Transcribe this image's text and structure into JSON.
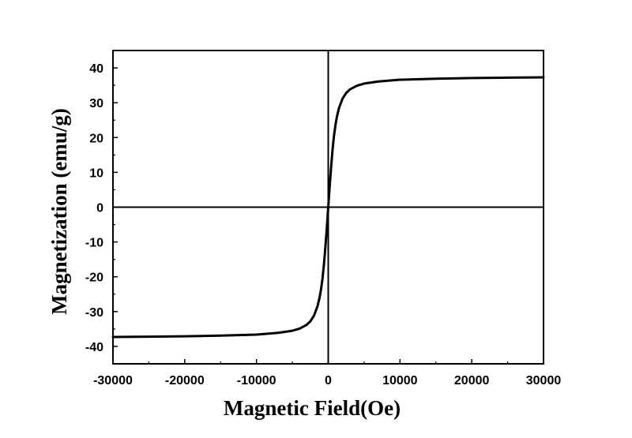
{
  "chart_data": {
    "type": "line",
    "title": "",
    "xlabel": "Magnetic Field(Oe)",
    "ylabel": "Magnetization (emu/g)",
    "xlim": [
      -30000,
      30000
    ],
    "ylim": [
      -45,
      45
    ],
    "x_ticks": [
      -30000,
      -20000,
      -10000,
      0,
      10000,
      20000,
      30000
    ],
    "x_tick_labels": [
      "-30000",
      "-20000",
      "-10000",
      "0",
      "10000",
      "20000",
      "30000"
    ],
    "y_ticks": [
      -40,
      -30,
      -20,
      -10,
      0,
      10,
      20,
      30,
      40
    ],
    "y_tick_labels": [
      "-40",
      "-30",
      "-20",
      "-10",
      "0",
      "10",
      "20",
      "30",
      "40"
    ],
    "grid": false,
    "legend": "none",
    "zero_lines": true,
    "line_color": "#000000",
    "series": [
      {
        "x": [
          -30000,
          -25000,
          -20000,
          -15000,
          -10000,
          -7000,
          -5000,
          -4000,
          -3000,
          -2500,
          -2000,
          -1500,
          -1200,
          -1000,
          -800,
          -600,
          -400,
          -200,
          0,
          200,
          400,
          600,
          800,
          1000,
          1200,
          1500,
          2000,
          2500,
          3000,
          4000,
          5000,
          7000,
          10000,
          15000,
          20000,
          25000,
          30000
        ],
        "y": [
          -37.3,
          -37.2,
          -37.1,
          -36.9,
          -36.6,
          -36.1,
          -35.5,
          -34.9,
          -33.8,
          -32.8,
          -31.2,
          -28.5,
          -25.9,
          -23.5,
          -20.5,
          -16.5,
          -11.5,
          -6.0,
          0,
          6.0,
          11.5,
          16.5,
          20.5,
          23.5,
          25.9,
          28.5,
          31.2,
          32.8,
          33.8,
          34.9,
          35.5,
          36.1,
          36.6,
          36.9,
          37.1,
          37.2,
          37.3
        ]
      }
    ]
  }
}
